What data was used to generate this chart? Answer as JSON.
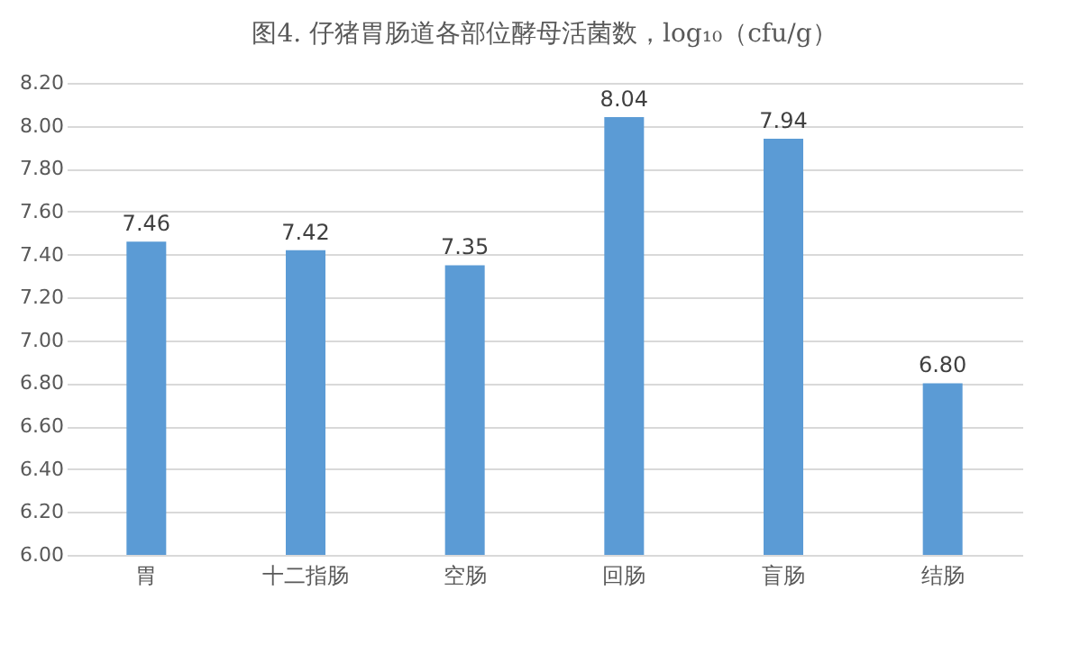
{
  "chart_data": {
    "type": "bar",
    "title": "图4. 仔猪胃肠道各部位酵母活菌数，log₁₀（cfu/g）",
    "categories": [
      "胃",
      "十二指肠",
      "空肠",
      "回肠",
      "盲肠",
      "结肠"
    ],
    "values": [
      7.46,
      7.42,
      7.35,
      8.04,
      7.94,
      6.8
    ],
    "value_labels": [
      "7.46",
      "7.42",
      "7.35",
      "8.04",
      "7.94",
      "6.80"
    ],
    "color": "#5b9bd5",
    "ylim": [
      6,
      8.2
    ],
    "yticks": [
      {
        "value": 6,
        "label": "6.00"
      },
      {
        "value": 6.2,
        "label": "6.20"
      },
      {
        "value": 6.4,
        "label": "6.40"
      },
      {
        "value": 6.6,
        "label": "6.60"
      },
      {
        "value": 6.8,
        "label": "6.80"
      },
      {
        "value": 7,
        "label": "7.00"
      },
      {
        "value": 7.2,
        "label": "7.20"
      },
      {
        "value": 7.4,
        "label": "7.40"
      },
      {
        "value": 7.6,
        "label": "7.60"
      },
      {
        "value": 7.8,
        "label": "7.80"
      },
      {
        "value": 8,
        "label": "8.00"
      },
      {
        "value": 8.2,
        "label": "8.20"
      }
    ],
    "grid": true
  }
}
